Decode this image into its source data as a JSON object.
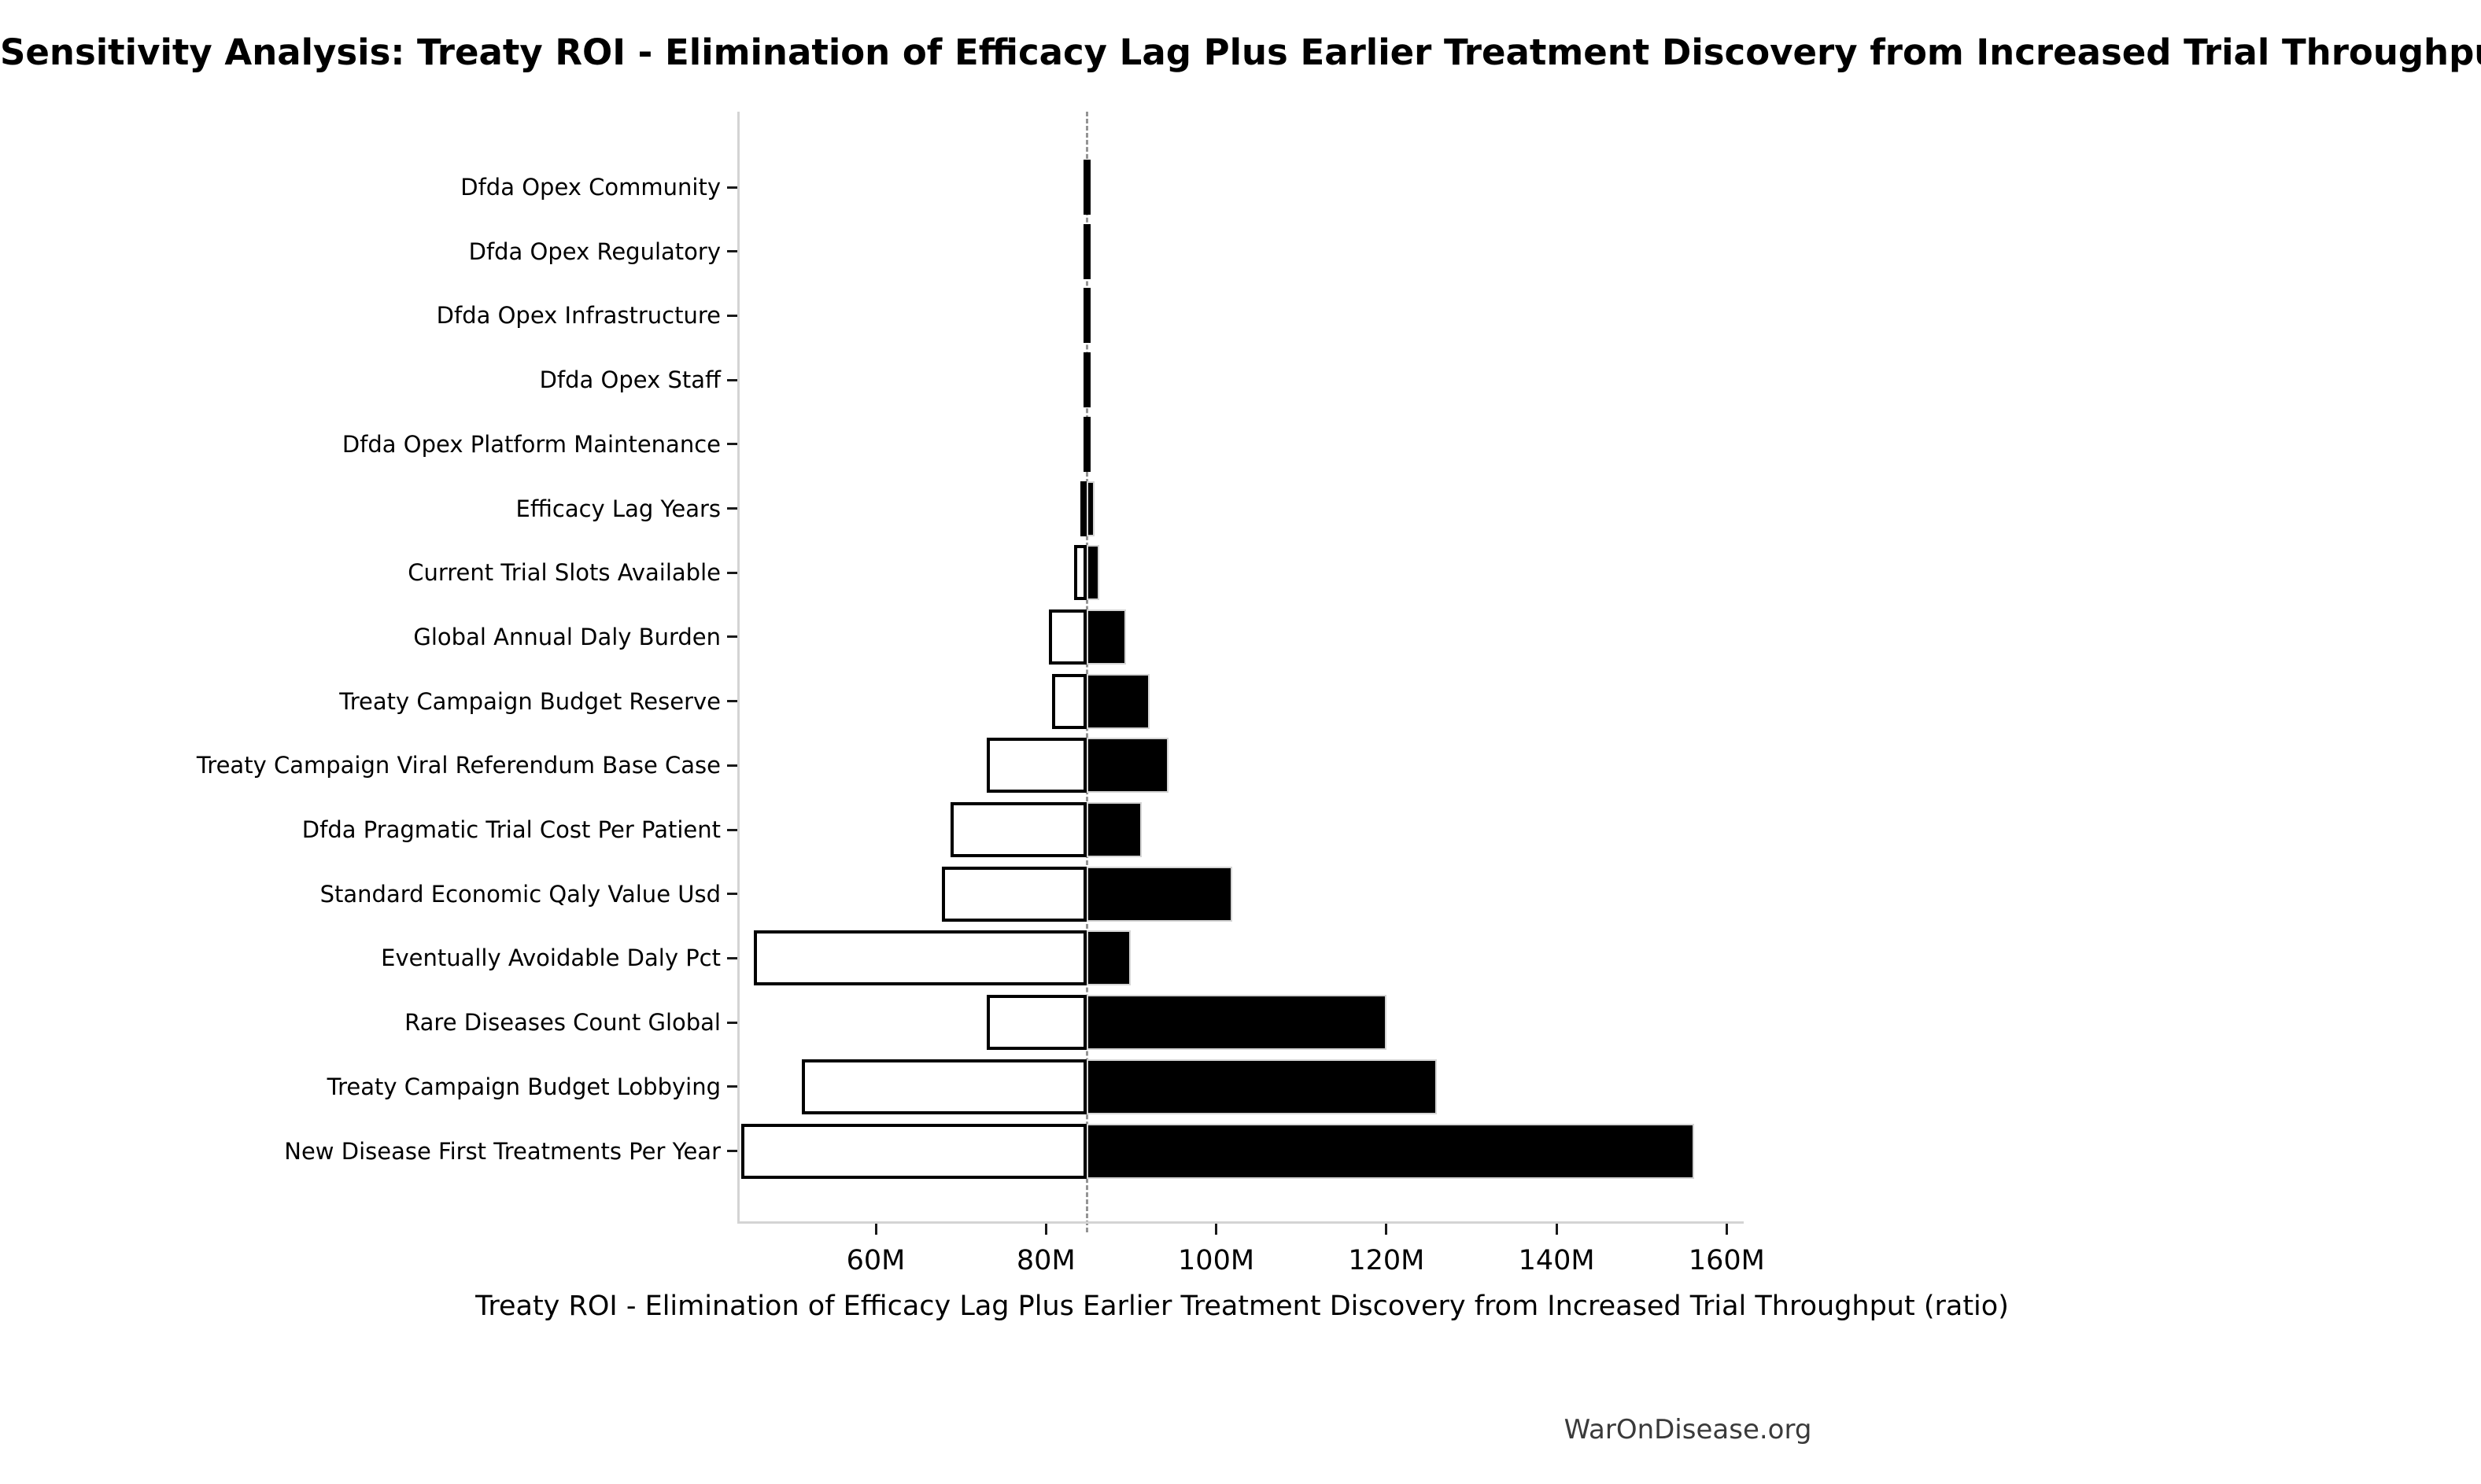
{
  "page": {
    "footer": "WarOnDisease.org"
  },
  "chart_data": {
    "type": "bar",
    "variant": "tornado-sensitivity",
    "orientation": "horizontal",
    "title": "Sensitivity Analysis: Treaty ROI - Elimination of Efficacy Lag Plus Earlier Treatment Discovery from Increased Trial Throughput",
    "xlabel": "Treaty ROI - Elimination of Efficacy Lag Plus Earlier Treatment Discovery from Increased Trial Throughput (ratio)",
    "value_unit": "M",
    "baseline": 84.8,
    "xlim": [
      44,
      162
    ],
    "xticks": [
      {
        "value": 60,
        "label": "60M"
      },
      {
        "value": 80,
        "label": "80M"
      },
      {
        "value": 100,
        "label": "100M"
      },
      {
        "value": 120,
        "label": "120M"
      },
      {
        "value": 140,
        "label": "140M"
      },
      {
        "value": 160,
        "label": "160M"
      }
    ],
    "grid": false,
    "legend": "none",
    "bar_colors": {
      "low_side": "#ffffff",
      "high_side": "#000000",
      "edge": "#000000"
    },
    "categories": [
      "Dfda Opex Community",
      "Dfda Opex Regulatory",
      "Dfda Opex Infrastructure",
      "Dfda Opex Staff",
      "Dfda Opex Platform Maintenance",
      "Efficacy Lag Years",
      "Current Trial Slots Available",
      "Global Annual Daly Burden",
      "Treaty Campaign Budget Reserve",
      "Treaty Campaign Viral Referendum Base Case",
      "Dfda Pragmatic Trial Cost Per Patient",
      "Standard Economic Qaly Value Usd",
      "Eventually Avoidable Daly Pct",
      "Rare Diseases Count Global",
      "Treaty Campaign Budget Lobbying",
      "New Disease First Treatments Per Year"
    ],
    "series": [
      {
        "name": "Low parameter value (white bar, left of baseline)",
        "values": [
          84.8,
          84.8,
          84.8,
          84.8,
          84.8,
          84.0,
          83.3,
          80.3,
          80.7,
          73.0,
          68.8,
          67.8,
          45.7,
          73.0,
          51.3,
          44.2
        ]
      },
      {
        "name": "High parameter value (black bar, right of baseline)",
        "values": [
          84.8,
          84.8,
          84.8,
          84.8,
          84.8,
          85.7,
          86.3,
          89.4,
          92.2,
          94.4,
          91.3,
          101.9,
          90.0,
          120.0,
          125.9,
          156.2
        ]
      }
    ]
  }
}
